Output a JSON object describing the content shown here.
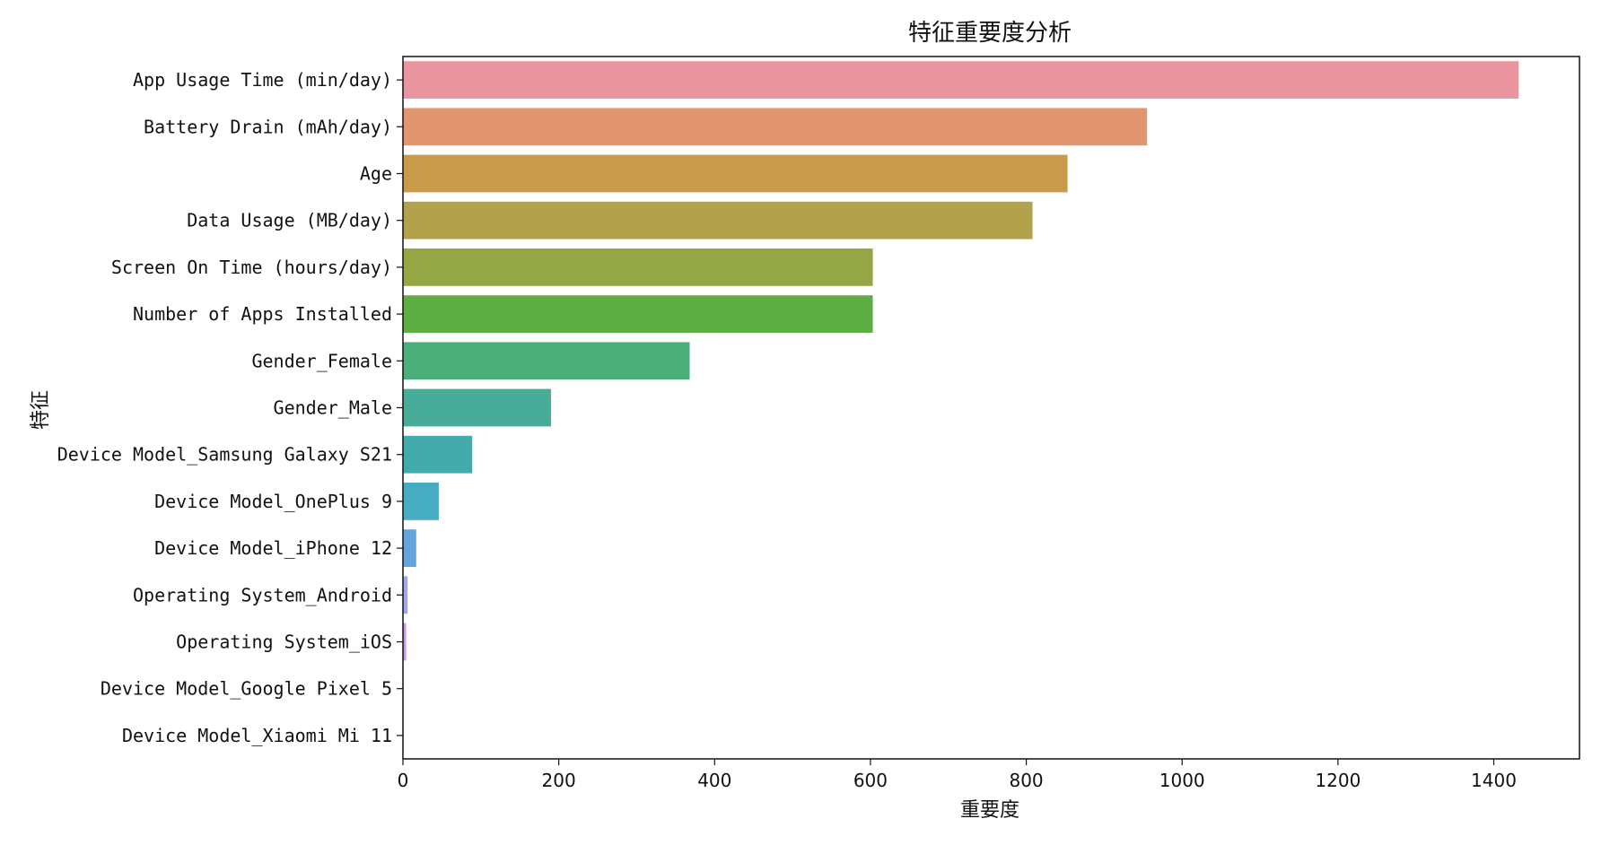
{
  "chart_data": {
    "type": "bar",
    "orientation": "horizontal",
    "title": "特征重要度分析",
    "xlabel": "重要度",
    "ylabel": "特征",
    "xlim": [
      0,
      1510
    ],
    "xticks": [
      "0",
      "200",
      "400",
      "600",
      "800",
      "1000",
      "1200",
      "1400"
    ],
    "grid": false,
    "legend": "none",
    "categories": [
      "App Usage Time (min/day)",
      "Battery Drain (mAh/day)",
      "Age",
      "Data Usage (MB/day)",
      "Screen On Time (hours/day)",
      "Number of Apps Installed",
      "Gender_Female",
      "Gender_Male",
      "Device Model_Samsung Galaxy S21",
      "Device Model_OnePlus 9",
      "Device Model_iPhone 12",
      "Operating System_Android",
      "Operating System_iOS",
      "Device Model_Google Pixel 5",
      "Device Model_Xiaomi Mi 11"
    ],
    "values": [
      1432,
      955,
      853,
      808,
      603,
      603,
      368,
      190,
      89,
      46,
      17,
      6,
      4,
      0,
      0
    ],
    "colors": [
      "#ea949f",
      "#e29670",
      "#c99a4a",
      "#b2a24b",
      "#95a645",
      "#5fae44",
      "#4caf7a",
      "#47ad99",
      "#44abac",
      "#46acc2",
      "#64a5dd",
      "#a3a6ed",
      "#c496ec",
      "#e38ed8",
      "#ea8cc0"
    ]
  }
}
